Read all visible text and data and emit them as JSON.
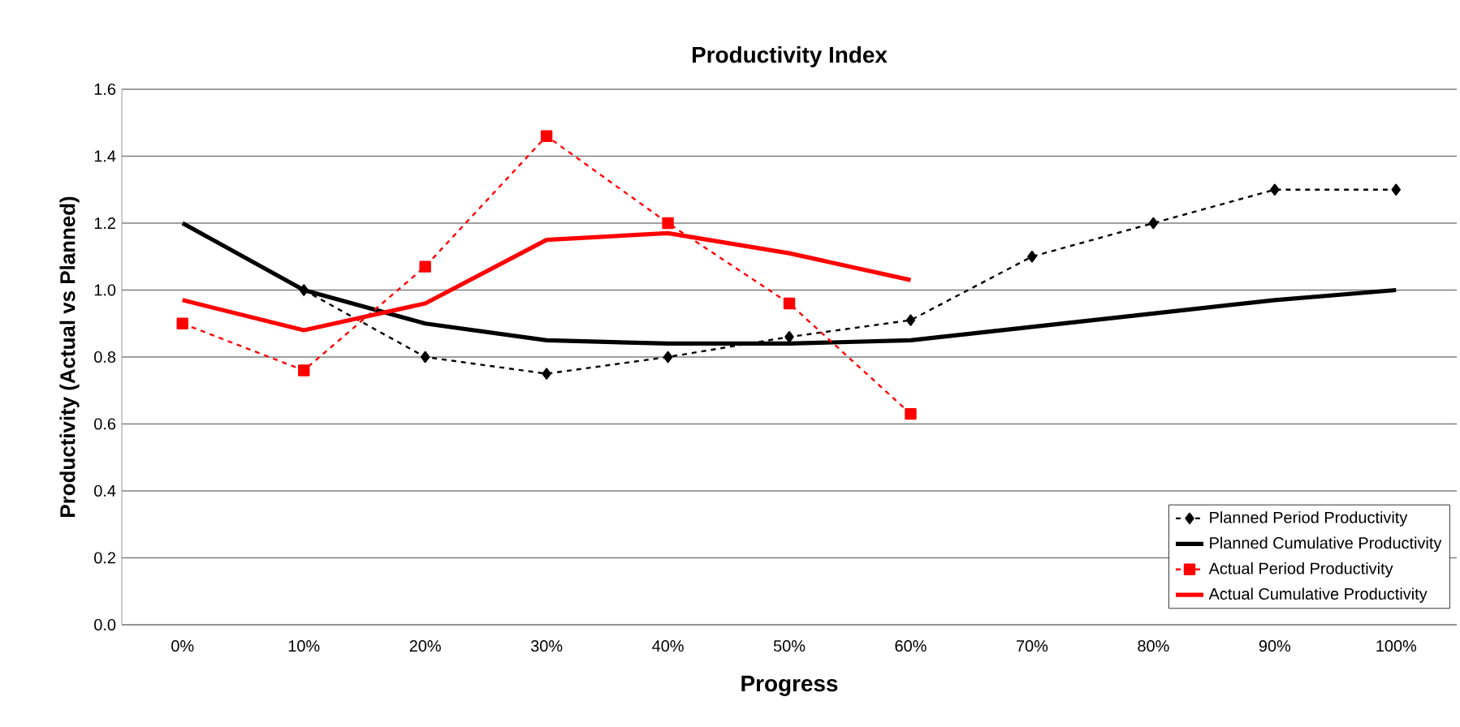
{
  "chart_data": {
    "type": "line",
    "title": "Productivity Index",
    "xlabel": "Progress",
    "ylabel": "Productivity (Actual vs Planned)",
    "categories": [
      "0%",
      "10%",
      "20%",
      "30%",
      "40%",
      "50%",
      "60%",
      "70%",
      "80%",
      "90%",
      "100%"
    ],
    "ylim": [
      0,
      1.6
    ],
    "yticks": [
      {
        "value": 0,
        "label": "0.0"
      },
      {
        "value": 0.2,
        "label": "0.2"
      },
      {
        "value": 0.4,
        "label": "0.4"
      },
      {
        "value": 0.6,
        "label": "0.6"
      },
      {
        "value": 0.8,
        "label": "0.8"
      },
      {
        "value": 1.0,
        "label": "1.0"
      },
      {
        "value": 1.2,
        "label": "1.2"
      },
      {
        "value": 1.4,
        "label": "1.4"
      },
      {
        "value": 1.6,
        "label": "1.6"
      }
    ],
    "grid": "y",
    "legend": "bottom right",
    "series": [
      {
        "name": "Planned Period Productivity",
        "color": "#000000",
        "marker": "diamond",
        "line_style": "dashed",
        "values": [
          null,
          1.0,
          0.8,
          0.75,
          0.8,
          0.86,
          0.91,
          1.1,
          1.2,
          1.3,
          1.3
        ]
      },
      {
        "name": "Planned Cumulative Productivity",
        "color": "#000000",
        "marker": "none",
        "line_style": "solid",
        "values": [
          1.2,
          1.0,
          0.9,
          0.85,
          0.84,
          0.84,
          0.85,
          0.89,
          0.93,
          0.97,
          1.0
        ]
      },
      {
        "name": "Actual Period Productivity",
        "color": "#ff0000",
        "marker": "square",
        "line_style": "dashed",
        "values": [
          0.9,
          0.76,
          1.07,
          1.46,
          1.2,
          0.96,
          0.63,
          null,
          null,
          null,
          null
        ]
      },
      {
        "name": "Actual Cumulative Productivity",
        "color": "#ff0000",
        "marker": "none",
        "line_style": "solid",
        "values": [
          0.97,
          0.88,
          0.96,
          1.15,
          1.17,
          1.11,
          1.03,
          null,
          null,
          null,
          null
        ]
      }
    ]
  }
}
